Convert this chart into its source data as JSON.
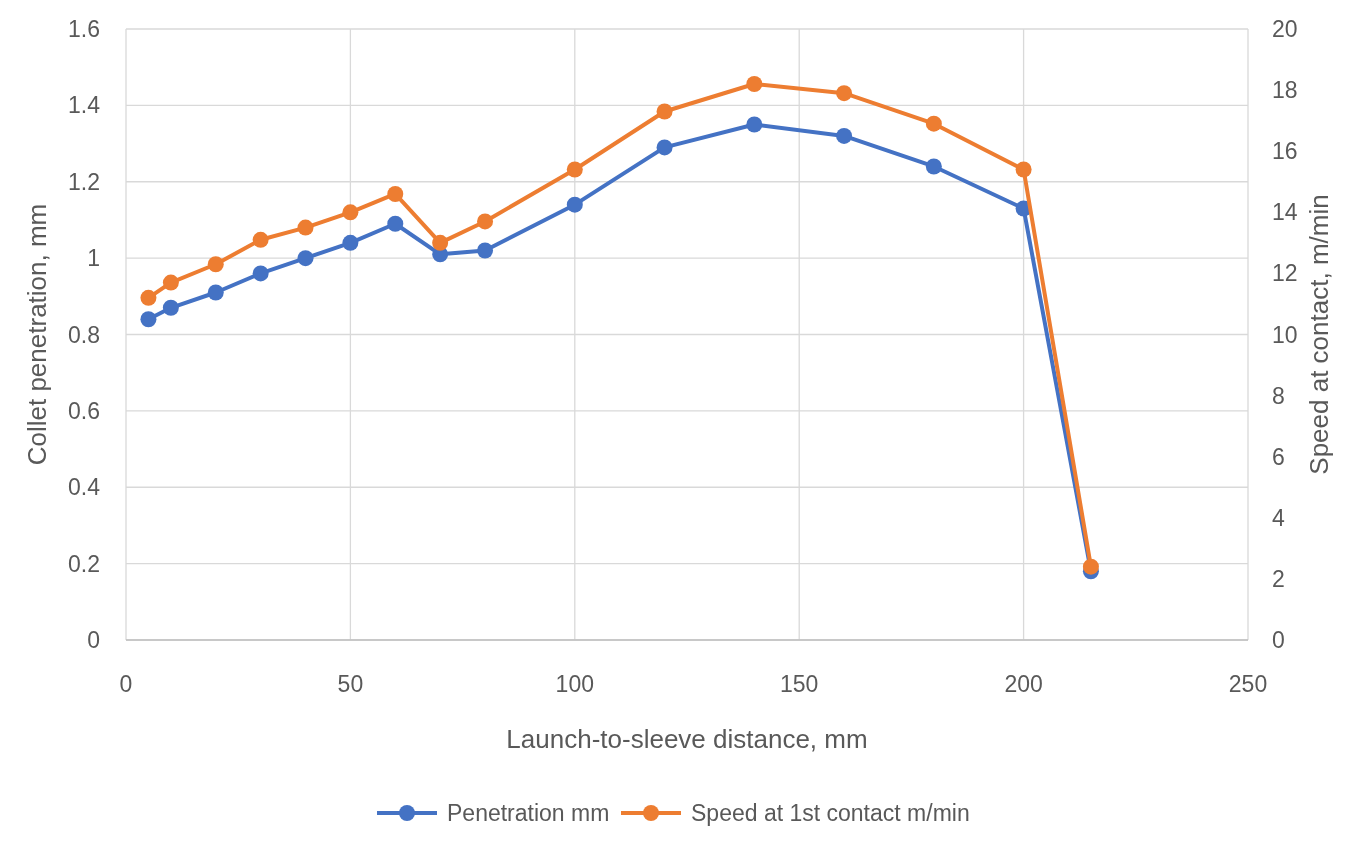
{
  "chart_data": {
    "type": "line",
    "xlabel": "Launch-to-sleeve distance, mm",
    "ylabel": "Collet penetration, mm",
    "y2label": "Speed at contact, m/min",
    "x": [
      5,
      10,
      20,
      30,
      40,
      50,
      60,
      70,
      80,
      100,
      120,
      140,
      160,
      180,
      200,
      215
    ],
    "series": [
      {
        "name": "Penetration mm",
        "color": "#4472c4",
        "values": [
          0.84,
          0.87,
          0.91,
          0.96,
          1.0,
          1.04,
          1.09,
          1.01,
          1.02,
          1.14,
          1.29,
          1.35,
          1.32,
          1.24,
          1.13,
          0.18
        ]
      },
      {
        "name": "Speed at 1st contact m/min",
        "color": "#ed7d31",
        "axis": "y2",
        "values": [
          11.2,
          11.7,
          12.3,
          13.1,
          13.5,
          14.0,
          14.6,
          13.0,
          13.7,
          15.4,
          17.3,
          18.2,
          17.9,
          16.9,
          15.4,
          2.4
        ]
      }
    ],
    "xlim": [
      0,
      250
    ],
    "xticks": [
      0,
      50,
      100,
      150,
      200,
      250
    ],
    "ylim": [
      0,
      1.6
    ],
    "yticks": [
      0,
      0.2,
      0.4,
      0.6,
      0.8,
      1,
      1.2,
      1.4,
      1.6
    ],
    "y2lim": [
      0,
      20
    ],
    "y2ticks": [
      0,
      2,
      4,
      6,
      8,
      10,
      12,
      14,
      16,
      18,
      20
    ],
    "grid": true,
    "legend": "bottom",
    "marker": "circle",
    "line_style": "solid"
  }
}
